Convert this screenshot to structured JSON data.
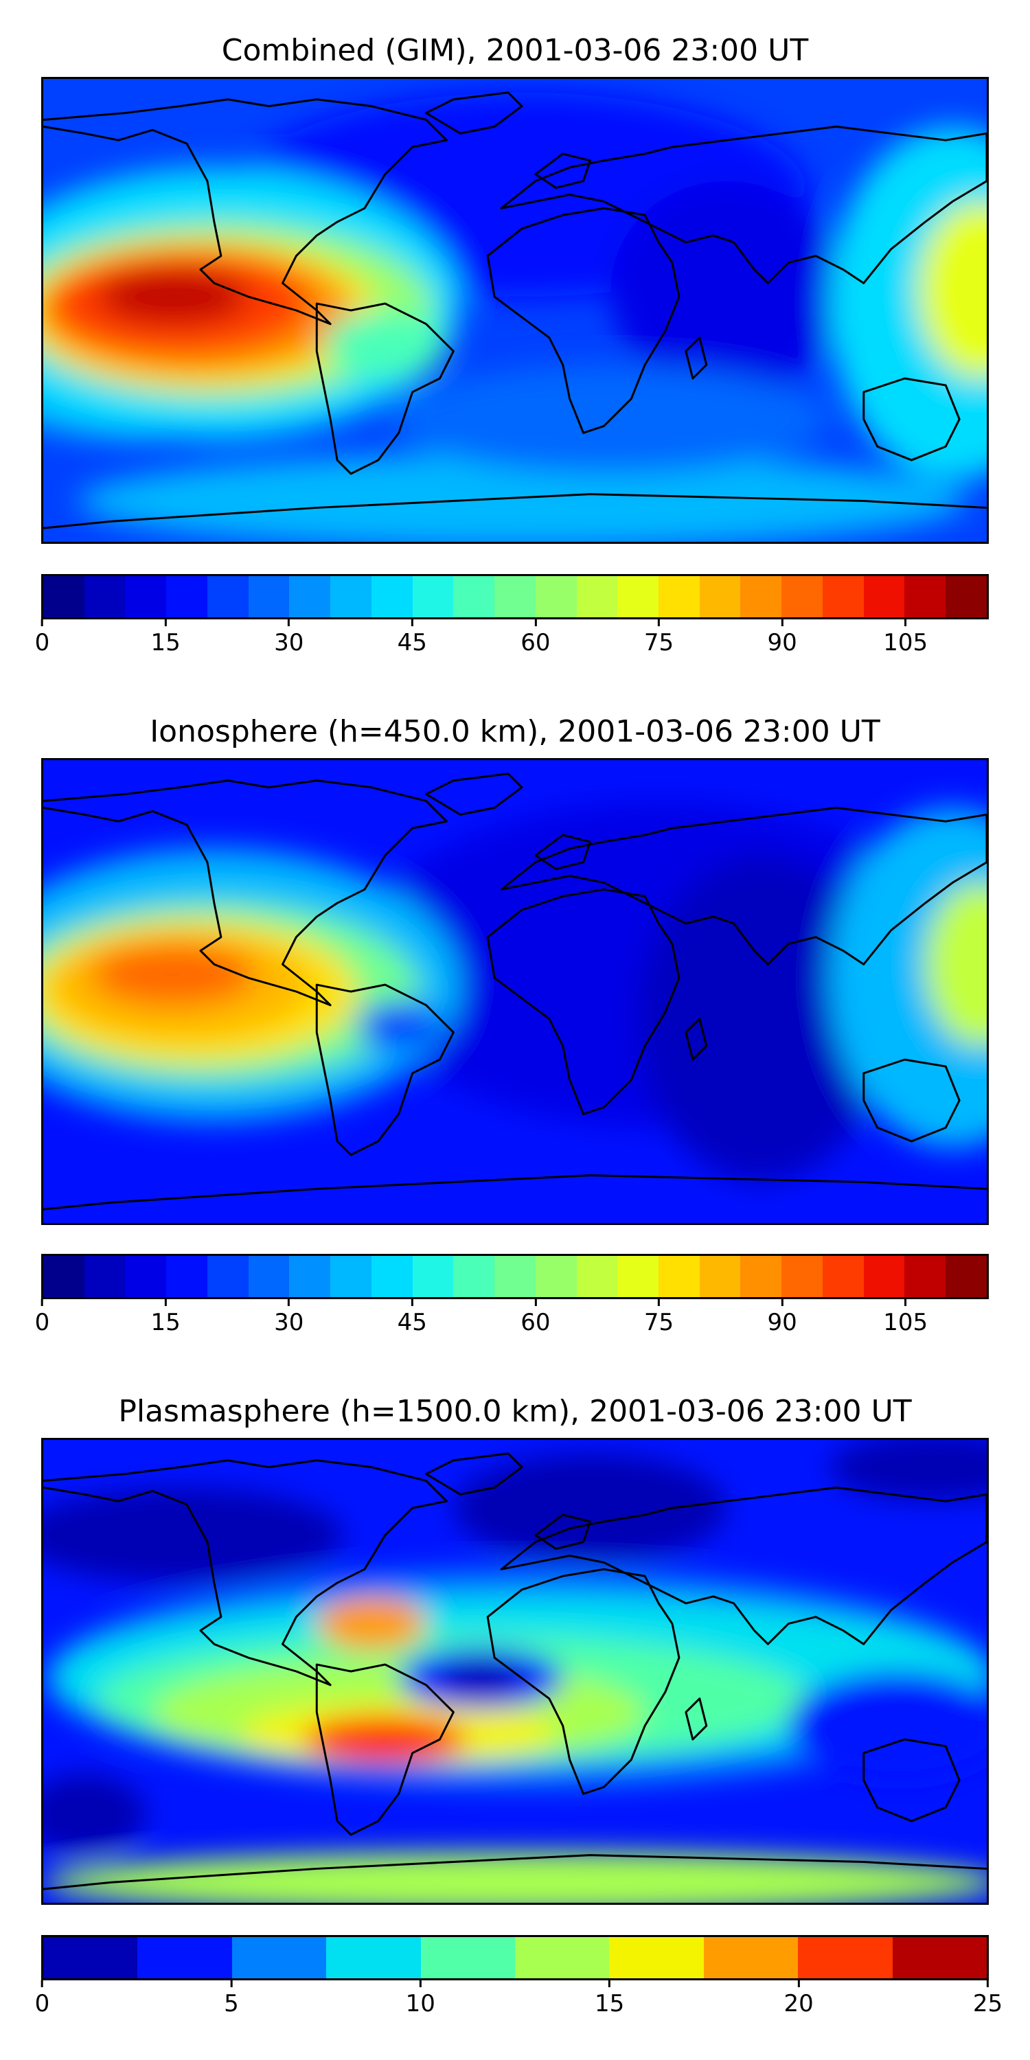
{
  "panels": [
    {
      "title": "Combined (GIM), 2001-03-06 23:00 UT",
      "colorbar": {
        "vmin": 0,
        "vmax": 115,
        "ticks": [
          "0",
          "15",
          "30",
          "45",
          "60",
          "75",
          "90",
          "105"
        ],
        "tick_values": [
          0,
          15,
          30,
          45,
          60,
          75,
          90,
          105
        ],
        "colors": [
          "#00008c",
          "#0000bf",
          "#0000e6",
          "#0010ff",
          "#0040ff",
          "#0068ff",
          "#0090ff",
          "#00b8ff",
          "#00dcff",
          "#20f6e6",
          "#4affb8",
          "#70ff90",
          "#98ff68",
          "#c2ff3e",
          "#e6ff18",
          "#ffe000",
          "#ffb800",
          "#ff9000",
          "#ff6800",
          "#ff3c00",
          "#f01000",
          "#c00000",
          "#8c0000"
        ]
      }
    },
    {
      "title": "Ionosphere  (h=450.0 km), 2001-03-06 23:00 UT",
      "colorbar": {
        "vmin": 0,
        "vmax": 115,
        "ticks": [
          "0",
          "15",
          "30",
          "45",
          "60",
          "75",
          "90",
          "105"
        ],
        "tick_values": [
          0,
          15,
          30,
          45,
          60,
          75,
          90,
          105
        ],
        "colors": [
          "#00008c",
          "#0000bf",
          "#0000e6",
          "#0010ff",
          "#0040ff",
          "#0068ff",
          "#0090ff",
          "#00b8ff",
          "#00dcff",
          "#20f6e6",
          "#4affb8",
          "#70ff90",
          "#98ff68",
          "#c2ff3e",
          "#e6ff18",
          "#ffe000",
          "#ffb800",
          "#ff9000",
          "#ff6800",
          "#ff3c00",
          "#f01000",
          "#c00000",
          "#8c0000"
        ]
      }
    },
    {
      "title": "Plasmasphere (h=1500.0 km), 2001-03-06 23:00 UT",
      "colorbar": {
        "vmin": 0,
        "vmax": 25,
        "ticks": [
          "0",
          "5",
          "10",
          "15",
          "20",
          "25"
        ],
        "tick_values": [
          0,
          5,
          10,
          15,
          20,
          25
        ],
        "colors": [
          "#0000b4",
          "#0014ff",
          "#0080ff",
          "#00e0f0",
          "#50ffa8",
          "#a8ff50",
          "#f4f400",
          "#ff9c00",
          "#ff3800",
          "#b40000"
        ]
      }
    }
  ]
}
